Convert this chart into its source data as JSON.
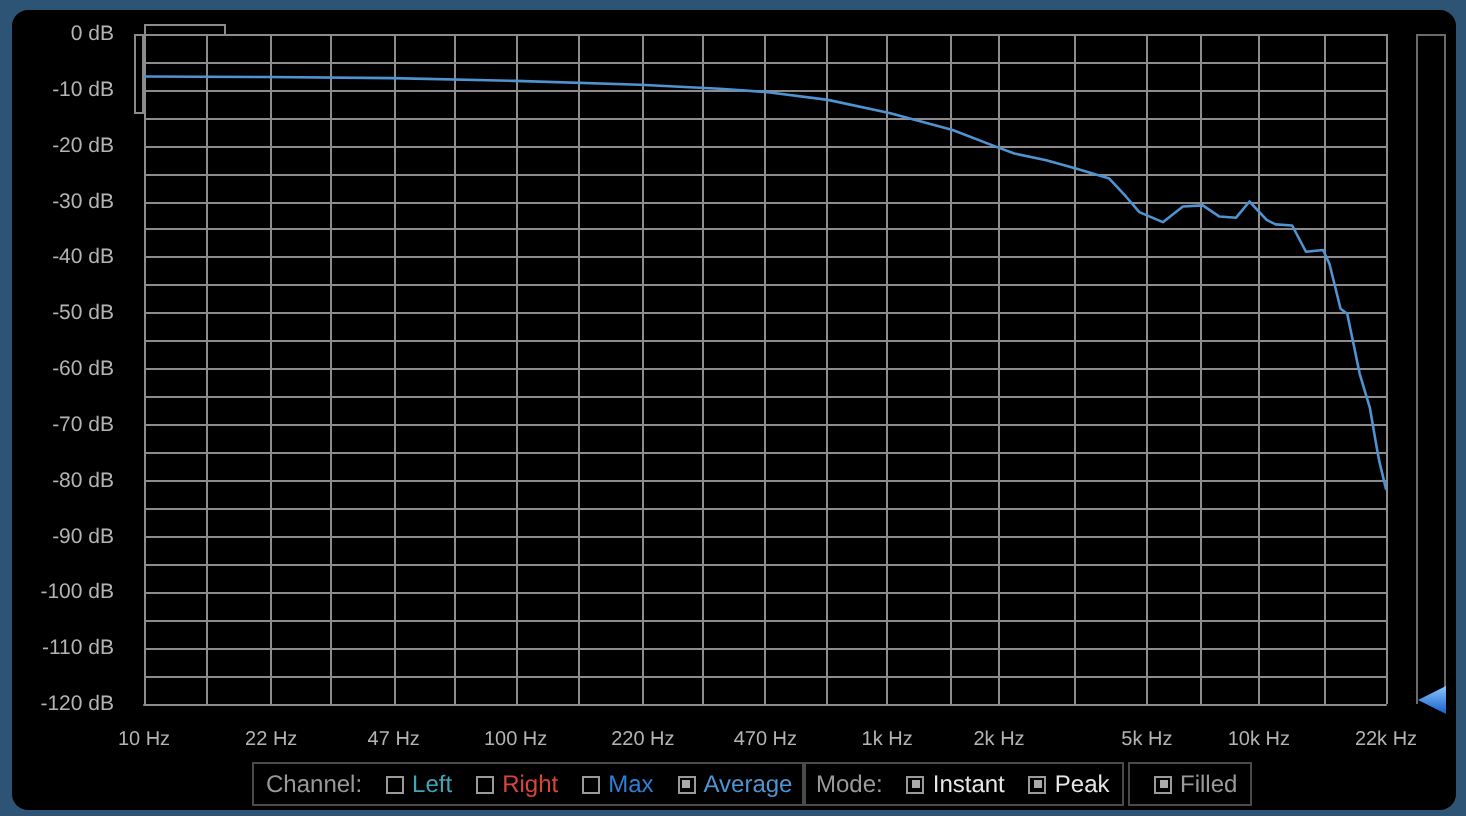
{
  "chart_data": {
    "type": "line",
    "x": [
      10,
      21.6,
      46.5,
      100,
      216,
      354,
      472,
      693,
      1020,
      1500,
      2000,
      2200,
      2680,
      3220,
      3960,
      4390,
      4770,
      5520,
      6250,
      7070,
      7840,
      8690,
      9440,
      10500,
      11100,
      12300,
      13400,
      14900,
      15500,
      16600,
      17300,
      18700,
      19900,
      20700,
      21100,
      22000
    ],
    "series": [
      {
        "name": "Average",
        "color": "#4f93d2",
        "values": [
          -7.6,
          -7.7,
          -7.9,
          -8.4,
          -9.1,
          -9.8,
          -10.4,
          -11.8,
          -14.2,
          -17.2,
          -20.4,
          -21.4,
          -22.6,
          -24.1,
          -25.9,
          -29.1,
          -31.9,
          -33.7,
          -30.9,
          -30.7,
          -32.7,
          -32.9,
          -30.0,
          -33.3,
          -34.1,
          -34.3,
          -39.0,
          -38.7,
          -41.2,
          -49.2,
          -50.1,
          -60.9,
          -66.9,
          -73.5,
          -76.5,
          -81.5
        ]
      }
    ],
    "log": "x",
    "xlim": [
      10,
      22000
    ],
    "xticks": [
      {
        "value": 10,
        "label": "10 Hz"
      },
      {
        "value": 14.7,
        "label": null
      },
      {
        "value": 22,
        "label": "22 Hz"
      },
      {
        "value": 31.7,
        "label": null
      },
      {
        "value": 47,
        "label": "47 Hz"
      },
      {
        "value": 68.5,
        "label": null
      },
      {
        "value": 100,
        "label": "100 Hz"
      },
      {
        "value": 147.9,
        "label": null
      },
      {
        "value": 220,
        "label": "220 Hz"
      },
      {
        "value": 319.3,
        "label": null
      },
      {
        "value": 470,
        "label": "470 Hz"
      },
      {
        "value": 689,
        "label": null
      },
      {
        "value": 1000,
        "label": "1k Hz"
      },
      {
        "value": 1488,
        "label": null
      },
      {
        "value": 2000,
        "label": "2k Hz"
      },
      {
        "value": 3212,
        "label": null
      },
      {
        "value": 5000,
        "label": "5k Hz"
      },
      {
        "value": 6935,
        "label": null
      },
      {
        "value": 10000,
        "label": "10k Hz"
      },
      {
        "value": 14970,
        "label": null
      },
      {
        "value": 22000,
        "label": "22k Hz"
      }
    ],
    "ylim": [
      -120,
      0
    ],
    "yticks": [
      {
        "value": -120,
        "label": "-120 dB"
      },
      {
        "value": -115,
        "label": null
      },
      {
        "value": -110,
        "label": "-110 dB"
      },
      {
        "value": -105,
        "label": null
      },
      {
        "value": -100,
        "label": "-100 dB"
      },
      {
        "value": -95,
        "label": null
      },
      {
        "value": -90,
        "label": "-90 dB"
      },
      {
        "value": -85,
        "label": null
      },
      {
        "value": -80,
        "label": "-80 dB"
      },
      {
        "value": -75,
        "label": null
      },
      {
        "value": -70,
        "label": "-70 dB"
      },
      {
        "value": -65,
        "label": null
      },
      {
        "value": -60,
        "label": "-60 dB"
      },
      {
        "value": -55,
        "label": null
      },
      {
        "value": -50,
        "label": "-50 dB"
      },
      {
        "value": -45,
        "label": null
      },
      {
        "value": -40,
        "label": "-40 dB"
      },
      {
        "value": -35,
        "label": null
      },
      {
        "value": -30,
        "label": "-30 dB"
      },
      {
        "value": -25,
        "label": null
      },
      {
        "value": -20,
        "label": "-20 dB"
      },
      {
        "value": -15,
        "label": null
      },
      {
        "value": -10,
        "label": "-10 dB"
      },
      {
        "value": -5,
        "label": null
      },
      {
        "value": 0,
        "label": "0 dB"
      }
    ],
    "grid": true,
    "legend": "bottom",
    "annotations": [
      "Channel:",
      "Left",
      "Right",
      "Max",
      "Mode:",
      "Instant",
      "Peak",
      "Filled"
    ]
  }
}
